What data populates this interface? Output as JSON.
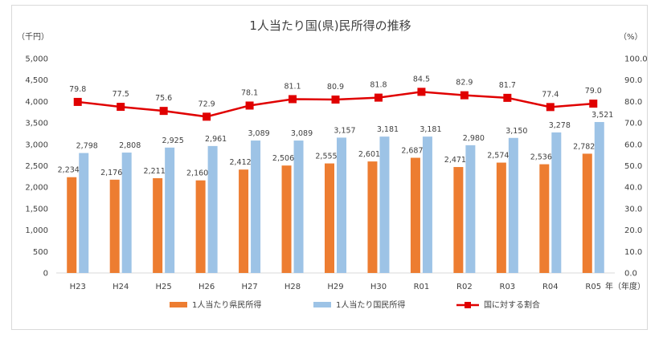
{
  "chart_data": {
    "type": "bar",
    "title": "1人当たり国(県)民所得の推移",
    "y_left_unit": "（千円）",
    "y_right_unit": "（%）",
    "x_unit": "年（年度）",
    "ylim_left": [
      0,
      5000
    ],
    "ylim_right": [
      0,
      100
    ],
    "y_left_ticks": [
      "0",
      "500",
      "1,000",
      "1,500",
      "2,000",
      "2,500",
      "3,000",
      "3,500",
      "4,000",
      "4,500",
      "5,000"
    ],
    "y_right_ticks": [
      "0.0",
      "10.0",
      "20.0",
      "30.0",
      "40.0",
      "50.0",
      "60.0",
      "70.0",
      "80.0",
      "90.0",
      "100.0"
    ],
    "categories": [
      "H23",
      "H24",
      "H25",
      "H26",
      "H27",
      "H28",
      "H29",
      "H30",
      "R01",
      "R02",
      "R03",
      "R04",
      "R05"
    ],
    "grid": false,
    "legend_position": "bottom",
    "series": [
      {
        "name": "1人当たり県民所得",
        "type": "bar",
        "axis": "left",
        "color": "#ED7D31",
        "values": [
          2234,
          2176,
          2211,
          2160,
          2412,
          2506,
          2555,
          2601,
          2687,
          2471,
          2574,
          2536,
          2782
        ],
        "labels": [
          "2,234",
          "2,176",
          "2,211",
          "2,160",
          "2,412",
          "2,506",
          "2,555",
          "2,601",
          "2,687",
          "2,471",
          "2,574",
          "2,536",
          "2,782"
        ]
      },
      {
        "name": "1人当たり国民所得",
        "type": "bar",
        "axis": "left",
        "color": "#9DC3E6",
        "values": [
          2798,
          2808,
          2925,
          2961,
          3089,
          3089,
          3157,
          3181,
          3181,
          2980,
          3150,
          3278,
          3521
        ],
        "labels": [
          "2,798",
          "2,808",
          "2,925",
          "2,961",
          "3,089",
          "3,089",
          "3,157",
          "3,181",
          "3,181",
          "2,980",
          "3,150",
          "3,278",
          "3,521"
        ]
      },
      {
        "name": "国に対する割合",
        "type": "line",
        "axis": "right",
        "color": "#E00000",
        "values": [
          79.8,
          77.5,
          75.6,
          72.9,
          78.1,
          81.1,
          80.9,
          81.8,
          84.5,
          82.9,
          81.7,
          77.4,
          79.0
        ],
        "labels": [
          "79.8",
          "77.5",
          "75.6",
          "72.9",
          "78.1",
          "81.1",
          "80.9",
          "81.8",
          "84.5",
          "82.9",
          "81.7",
          "77.4",
          "79.0"
        ]
      }
    ]
  }
}
